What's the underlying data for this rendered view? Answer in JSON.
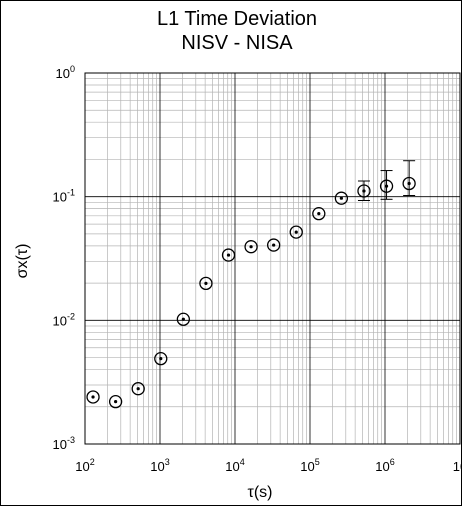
{
  "chart_data": {
    "type": "scatter",
    "title": "L1 Time Deviation",
    "subtitle": "NISV - NISA",
    "xlabel": "τ(s)",
    "ylabel": "σx(τ)",
    "x_scale": "log",
    "y_scale": "log",
    "xlim": [
      100,
      10000000
    ],
    "ylim": [
      0.001,
      1
    ],
    "grid": true,
    "x_ticks": [
      {
        "base": "10",
        "exp": "2"
      },
      {
        "base": "10",
        "exp": "3"
      },
      {
        "base": "10",
        "exp": "4"
      },
      {
        "base": "10",
        "exp": "5"
      },
      {
        "base": "10",
        "exp": "6"
      },
      {
        "base": "10",
        "exp": ""
      }
    ],
    "y_ticks": [
      {
        "base": "10",
        "exp": "-3"
      },
      {
        "base": "10",
        "exp": "-2"
      },
      {
        "base": "10",
        "exp": "-1"
      },
      {
        "base": "10",
        "exp": "0"
      }
    ],
    "series": [
      {
        "marker": "circle-dot",
        "color": "#000000",
        "points": [
          {
            "x": 128,
            "y": 0.0024
          },
          {
            "x": 256,
            "y": 0.0022
          },
          {
            "x": 512,
            "y": 0.0028
          },
          {
            "x": 1024,
            "y": 0.0049
          },
          {
            "x": 2048,
            "y": 0.0102
          },
          {
            "x": 4096,
            "y": 0.0199
          },
          {
            "x": 8192,
            "y": 0.0337
          },
          {
            "x": 16384,
            "y": 0.0394
          },
          {
            "x": 32768,
            "y": 0.0406
          },
          {
            "x": 65536,
            "y": 0.0517
          },
          {
            "x": 131072,
            "y": 0.0729
          },
          {
            "x": 262144,
            "y": 0.0972
          },
          {
            "x": 524288,
            "y": 0.1112,
            "err_low": 0.0931,
            "err_high": 0.1339
          },
          {
            "x": 1048576,
            "y": 0.1216,
            "err_low": 0.0952,
            "err_high": 0.1626
          },
          {
            "x": 2097152,
            "y": 0.1278,
            "err_low": 0.1022,
            "err_high": 0.1953
          }
        ]
      }
    ]
  }
}
